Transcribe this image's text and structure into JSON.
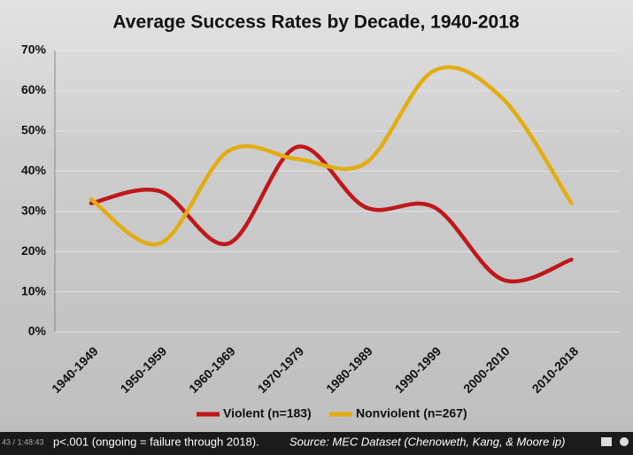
{
  "chart_data": {
    "type": "line",
    "title": "Average Success Rates by Decade, 1940-2018",
    "categories": [
      "1940-1949",
      "1950-1959",
      "1960-1969",
      "1970-1979",
      "1980-1989",
      "1990-1999",
      "2000-2010",
      "2010-2018"
    ],
    "series": [
      {
        "name": "Violent (n=183)",
        "color": "#c0171b",
        "values": [
          32,
          35,
          22,
          46,
          31,
          31,
          13,
          18
        ]
      },
      {
        "name": "Nonviolent (n=267)",
        "color": "#e3ad12",
        "values": [
          33,
          22,
          45,
          43,
          42,
          65,
          58,
          32
        ]
      }
    ],
    "ylim": [
      0,
      70
    ],
    "yticks": [
      {
        "value": 0,
        "label": "0%"
      },
      {
        "value": 10,
        "label": "10%"
      },
      {
        "value": 20,
        "label": "20%"
      },
      {
        "value": 30,
        "label": "30%"
      },
      {
        "value": 40,
        "label": "40%"
      },
      {
        "value": 50,
        "label": "50%"
      },
      {
        "value": 60,
        "label": "60%"
      },
      {
        "value": 70,
        "label": "70%"
      }
    ],
    "grid": true,
    "legend": "bottom",
    "smooth": true
  },
  "caption": {
    "note": "p<.001 (ongoing = failure through 2018).",
    "source": "Source: MEC Dataset (Chenoweth, Kang, & Moore ip)"
  },
  "player": {
    "time": "43 / 1:48:43"
  }
}
